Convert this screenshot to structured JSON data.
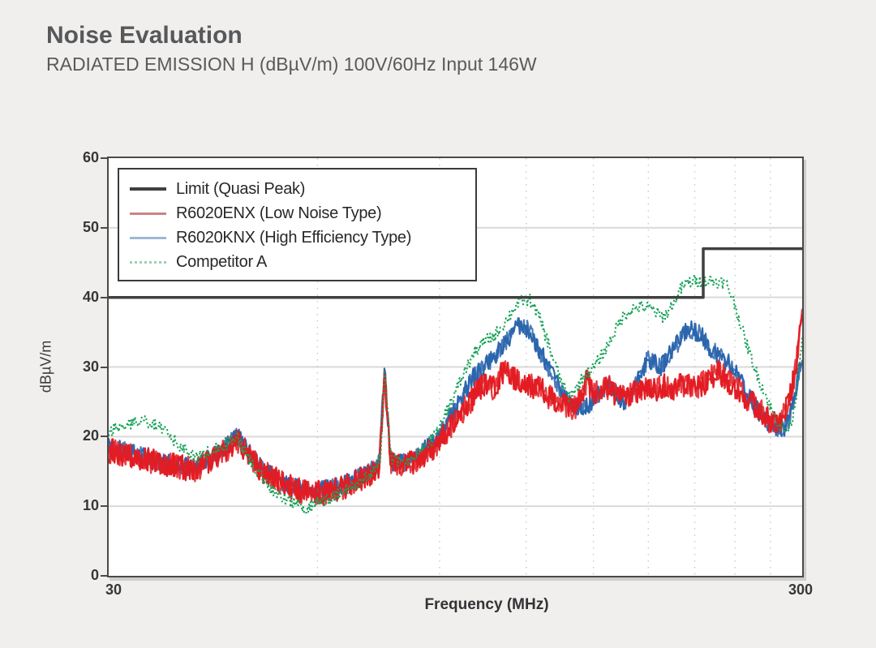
{
  "header": {
    "title": "Noise Evaluation",
    "subtitle": "RADIATED EMISSION H (dBµV/m) 100V/60Hz Input 146W"
  },
  "colors": {
    "background": "#f0efee",
    "plot_background": "#ffffff",
    "frame": "#4a4a4b",
    "grid_horizontal": "#d9d9d9",
    "grid_vertical": "#c9c9c9",
    "title_text": "#57585a",
    "tick_text": "#363638"
  },
  "chart_data": {
    "type": "line",
    "title": "Noise Evaluation",
    "subtitle": "RADIATED EMISSION H (dBµV/m) 100V/60Hz Input 146W",
    "xlabel": "Frequency (MHz)",
    "ylabel": "dBµV/m",
    "x_scale": "log",
    "xlim": [
      30,
      300
    ],
    "ylim": [
      0,
      60
    ],
    "x_tick_labels": [
      "30",
      "300"
    ],
    "y_ticks": [
      60,
      50,
      40,
      30,
      20,
      10,
      0
    ],
    "y_gridlines": [
      10,
      20,
      30,
      40,
      50
    ],
    "x_gridlines": [
      60,
      90,
      120,
      150,
      180,
      210,
      240,
      270
    ],
    "grid": true,
    "legend_position": "top-left",
    "series": [
      {
        "name": "Limit (Quasi Peak)",
        "color": "#3f4040",
        "legend_color": "#3f4040",
        "style": "step",
        "width": 3.5,
        "noise": 0,
        "seed": 1,
        "passes": 1,
        "z": 4,
        "points": [
          [
            30,
            40
          ],
          [
            216,
            40
          ],
          [
            216,
            47
          ],
          [
            300,
            47
          ]
        ]
      },
      {
        "name": "R6020ENX (Low Noise Type)",
        "color": "#e31c23",
        "legend_color": "#cb8389",
        "style": "solid",
        "width": 2.3,
        "noise": 1.8,
        "seed": 7,
        "passes": 2,
        "z": 2,
        "points": [
          [
            30,
            18
          ],
          [
            33,
            17
          ],
          [
            36,
            16
          ],
          [
            40,
            15.3
          ],
          [
            43,
            17
          ],
          [
            46,
            19.3
          ],
          [
            48,
            17
          ],
          [
            50,
            15
          ],
          [
            54,
            13
          ],
          [
            58,
            11.8
          ],
          [
            62,
            12
          ],
          [
            66,
            12.8
          ],
          [
            70,
            14
          ],
          [
            73.5,
            15.5
          ],
          [
            75,
            28.5
          ],
          [
            76.5,
            16
          ],
          [
            80,
            15.8
          ],
          [
            84,
            16.8
          ],
          [
            88,
            18.2
          ],
          [
            90,
            19.4
          ],
          [
            93,
            21
          ],
          [
            96,
            23
          ],
          [
            100,
            25.3
          ],
          [
            104,
            27.5
          ],
          [
            108,
            27
          ],
          [
            112,
            30
          ],
          [
            116,
            28
          ],
          [
            120,
            27.5
          ],
          [
            125,
            27
          ],
          [
            130,
            25.5
          ],
          [
            136,
            24.5
          ],
          [
            140,
            23.8
          ],
          [
            144,
            25.5
          ],
          [
            147,
            28.5
          ],
          [
            150,
            26
          ],
          [
            154,
            26.5
          ],
          [
            158,
            27
          ],
          [
            163,
            25.5
          ],
          [
            168,
            26
          ],
          [
            173,
            26.5
          ],
          [
            178,
            27
          ],
          [
            184,
            26.5
          ],
          [
            190,
            27.5
          ],
          [
            196,
            27
          ],
          [
            202,
            27.5
          ],
          [
            208,
            27
          ],
          [
            214,
            27.5
          ],
          [
            220,
            28
          ],
          [
            226,
            29.5
          ],
          [
            232,
            28.5
          ],
          [
            238,
            27.5
          ],
          [
            244,
            26.5
          ],
          [
            250,
            25.5
          ],
          [
            256,
            24.5
          ],
          [
            262,
            23.5
          ],
          [
            268,
            22.5
          ],
          [
            274,
            21.8
          ],
          [
            280,
            22.5
          ],
          [
            285,
            24
          ],
          [
            290,
            27
          ],
          [
            294,
            30
          ],
          [
            297,
            33.5
          ],
          [
            300,
            37.5
          ]
        ]
      },
      {
        "name": "R6020KNX (High Efficiency Type)",
        "color": "#2b65ad",
        "legend_color": "#9cb9d6",
        "style": "solid",
        "width": 2.1,
        "noise": 1.35,
        "seed": 3,
        "passes": 2,
        "z": 1,
        "points": [
          [
            30,
            18.5
          ],
          [
            33,
            17.5
          ],
          [
            36,
            16.2
          ],
          [
            40,
            15.5
          ],
          [
            43,
            17.5
          ],
          [
            46,
            20
          ],
          [
            48,
            17.5
          ],
          [
            50,
            15.2
          ],
          [
            54,
            13.2
          ],
          [
            58,
            12.2
          ],
          [
            62,
            12.5
          ],
          [
            66,
            13.2
          ],
          [
            70,
            14.5
          ],
          [
            73.5,
            16
          ],
          [
            75,
            29.3
          ],
          [
            76.5,
            16.5
          ],
          [
            80,
            16.2
          ],
          [
            84,
            17.3
          ],
          [
            88,
            19.2
          ],
          [
            90,
            20.8
          ],
          [
            93,
            22.5
          ],
          [
            96,
            24.8
          ],
          [
            100,
            28.2
          ],
          [
            104,
            30
          ],
          [
            108,
            31.5
          ],
          [
            112,
            33.5
          ],
          [
            116,
            35.8
          ],
          [
            119,
            36.2
          ],
          [
            122,
            34.5
          ],
          [
            126,
            32
          ],
          [
            130,
            29.5
          ],
          [
            134,
            27
          ],
          [
            138,
            25
          ],
          [
            142,
            24.2
          ],
          [
            146,
            24
          ],
          [
            150,
            25.2
          ],
          [
            154,
            26.5
          ],
          [
            158,
            27.5
          ],
          [
            162,
            26
          ],
          [
            166,
            25
          ],
          [
            170,
            26
          ],
          [
            175,
            28.5
          ],
          [
            180,
            31.3
          ],
          [
            184,
            30.5
          ],
          [
            188,
            30
          ],
          [
            192,
            31.5
          ],
          [
            196,
            32.5
          ],
          [
            200,
            34
          ],
          [
            205,
            35.5
          ],
          [
            210,
            35.2
          ],
          [
            215,
            34.5
          ],
          [
            220,
            33
          ],
          [
            225,
            32
          ],
          [
            230,
            31.2
          ],
          [
            235,
            30.5
          ],
          [
            240,
            29.5
          ],
          [
            246,
            27.5
          ],
          [
            252,
            25.5
          ],
          [
            258,
            24
          ],
          [
            264,
            22.8
          ],
          [
            270,
            21.8
          ],
          [
            276,
            21
          ],
          [
            282,
            21.2
          ],
          [
            287,
            22.5
          ],
          [
            292,
            25.5
          ],
          [
            296,
            28.5
          ],
          [
            300,
            31.5
          ]
        ]
      },
      {
        "name": "Competitor A",
        "color": "#16a157",
        "legend_color": "#a4ccb2",
        "style": "dotted",
        "width": 2.1,
        "noise": 0.9,
        "seed": 11,
        "passes": 1,
        "z": 3,
        "points": [
          [
            30,
            20.8
          ],
          [
            32,
            21.8
          ],
          [
            34,
            22.2
          ],
          [
            36,
            21
          ],
          [
            38,
            18.8
          ],
          [
            40,
            16.8
          ],
          [
            42,
            17.8
          ],
          [
            44,
            18.8
          ],
          [
            46,
            19.8
          ],
          [
            48,
            16.5
          ],
          [
            50,
            14
          ],
          [
            52,
            12
          ],
          [
            55,
            10.5
          ],
          [
            58,
            9.8
          ],
          [
            60,
            10.5
          ],
          [
            63,
            11.3
          ],
          [
            66,
            12.3
          ],
          [
            69,
            13.5
          ],
          [
            72,
            15
          ],
          [
            74,
            17
          ],
          [
            75,
            29.3
          ],
          [
            76.5,
            17
          ],
          [
            80,
            16.3
          ],
          [
            83,
            17
          ],
          [
            86,
            18.5
          ],
          [
            89,
            20.5
          ],
          [
            92,
            23.5
          ],
          [
            95,
            26.5
          ],
          [
            98,
            29.5
          ],
          [
            101,
            32
          ],
          [
            104,
            33.5
          ],
          [
            108,
            34.5
          ],
          [
            112,
            36.5
          ],
          [
            116,
            38.8
          ],
          [
            119,
            39.7
          ],
          [
            122,
            39.5
          ],
          [
            126,
            36.5
          ],
          [
            130,
            32.5
          ],
          [
            134,
            28.5
          ],
          [
            138,
            25.8
          ],
          [
            142,
            27
          ],
          [
            146,
            29
          ],
          [
            150,
            29.8
          ],
          [
            155,
            32
          ],
          [
            160,
            34.5
          ],
          [
            165,
            37
          ],
          [
            170,
            38.3
          ],
          [
            175,
            38.6
          ],
          [
            180,
            38.5
          ],
          [
            184,
            38
          ],
          [
            188,
            37.2
          ],
          [
            192,
            37.8
          ],
          [
            196,
            39.5
          ],
          [
            200,
            41
          ],
          [
            204,
            42
          ],
          [
            210,
            42.4
          ],
          [
            216,
            42.3
          ],
          [
            222,
            42.4
          ],
          [
            228,
            42.2
          ],
          [
            233,
            42
          ],
          [
            238,
            40
          ],
          [
            243,
            37
          ],
          [
            248,
            34
          ],
          [
            253,
            31.5
          ],
          [
            258,
            29
          ],
          [
            263,
            27
          ],
          [
            268,
            25
          ],
          [
            273,
            23
          ],
          [
            278,
            21.8
          ],
          [
            283,
            21
          ],
          [
            287,
            21.3
          ],
          [
            291,
            23
          ],
          [
            294,
            26
          ],
          [
            297,
            30.5
          ],
          [
            300,
            34.5
          ]
        ]
      }
    ]
  }
}
